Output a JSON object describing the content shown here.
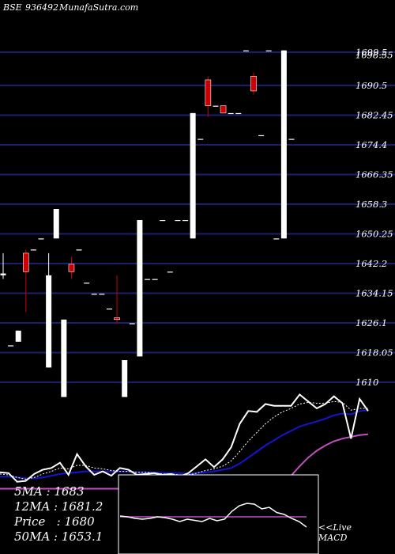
{
  "header": {
    "exchange": "BSE",
    "code": "936492",
    "site": "MunafaSutra.com"
  },
  "stats": [
    {
      "label": "5MA",
      "value": "1683"
    },
    {
      "label": "12MA",
      "value": "1681.2"
    },
    {
      "label": "Price",
      "value": "1680"
    },
    {
      "label": "50MA",
      "value": "1653.1"
    }
  ],
  "macd_note": {
    "line1": "<<Live",
    "line2": "MACD"
  },
  "colors": {
    "background": "#000000",
    "gridline": "#1e1e6e",
    "up": "#ffffff",
    "down": "#cc0000",
    "fast_ma": "#ffffff",
    "slow_ma": "#1414d2",
    "long_ma": "#c050c0"
  },
  "chart_data": {
    "type": "candlestick",
    "ylim": [
      1606,
      1701
    ],
    "y_ticks": [
      {
        "value": 1699.5,
        "label": "1699.5"
      },
      {
        "value": 1698.55,
        "label": "1698.55"
      },
      {
        "value": 1690.5,
        "label": "1690.5"
      },
      {
        "value": 1682.45,
        "label": "1682.45"
      },
      {
        "value": 1674.4,
        "label": "1674.4"
      },
      {
        "value": 1666.35,
        "label": "1666.35"
      },
      {
        "value": 1658.3,
        "label": "1658.3"
      },
      {
        "value": 1650.25,
        "label": "1650.25"
      },
      {
        "value": 1642.2,
        "label": "1642.2"
      },
      {
        "value": 1634.15,
        "label": "1634.15"
      },
      {
        "value": 1626.1,
        "label": "1626.1"
      },
      {
        "value": 1618.05,
        "label": "1618.05"
      },
      {
        "value": 1610,
        "label": "1610"
      }
    ],
    "candles": [
      {
        "o": 1639,
        "h": 1645,
        "l": 1638,
        "c": 1639.5
      },
      {
        "o": 1620,
        "h": 1620,
        "l": 1620,
        "c": 1620
      },
      {
        "o": 1621,
        "h": 1624,
        "l": 1621,
        "c": 1624
      },
      {
        "o": 1645,
        "h": 1646,
        "l": 1629,
        "c": 1640
      },
      {
        "o": 1646,
        "h": 1646,
        "l": 1646,
        "c": 1646
      },
      {
        "o": 1649,
        "h": 1649,
        "l": 1649,
        "c": 1649
      },
      {
        "o": 1614,
        "h": 1645,
        "l": 1614,
        "c": 1639
      },
      {
        "o": 1649,
        "h": 1657,
        "l": 1649,
        "c": 1657
      },
      {
        "o": 1606,
        "h": 1627,
        "l": 1606,
        "c": 1627
      },
      {
        "o": 1642,
        "h": 1644,
        "l": 1638,
        "c": 1640
      },
      {
        "o": 1646,
        "h": 1646,
        "l": 1646,
        "c": 1646
      },
      {
        "o": 1637,
        "h": 1637,
        "l": 1637,
        "c": 1637
      },
      {
        "o": 1634,
        "h": 1634,
        "l": 1634,
        "c": 1634
      },
      {
        "o": 1634,
        "h": 1634,
        "l": 1634,
        "c": 1634
      },
      {
        "o": 1630,
        "h": 1630,
        "l": 1630,
        "c": 1630
      },
      {
        "o": 1627.5,
        "h": 1639,
        "l": 1626,
        "c": 1627
      },
      {
        "o": 1606,
        "h": 1616,
        "l": 1606,
        "c": 1616
      },
      {
        "o": 1626,
        "h": 1626,
        "l": 1626,
        "c": 1626
      },
      {
        "o": 1617,
        "h": 1654,
        "l": 1617,
        "c": 1654
      },
      {
        "o": 1638,
        "h": 1638,
        "l": 1638,
        "c": 1638
      },
      {
        "o": 1638,
        "h": 1638,
        "l": 1638,
        "c": 1638
      },
      {
        "o": 1654,
        "h": 1654,
        "l": 1654,
        "c": 1654
      },
      {
        "o": 1640,
        "h": 1640,
        "l": 1640,
        "c": 1640
      },
      {
        "o": 1654,
        "h": 1654,
        "l": 1654,
        "c": 1654
      },
      {
        "o": 1654,
        "h": 1654,
        "l": 1654,
        "c": 1654
      },
      {
        "o": 1649,
        "h": 1683,
        "l": 1649,
        "c": 1683
      },
      {
        "o": 1676,
        "h": 1676,
        "l": 1676,
        "c": 1676
      },
      {
        "o": 1692,
        "h": 1693,
        "l": 1682,
        "c": 1685
      },
      {
        "o": 1685,
        "h": 1685,
        "l": 1685,
        "c": 1685
      },
      {
        "o": 1685,
        "h": 1685,
        "l": 1683,
        "c": 1683
      },
      {
        "o": 1683,
        "h": 1683,
        "l": 1683,
        "c": 1683
      },
      {
        "o": 1683,
        "h": 1683,
        "l": 1683,
        "c": 1683
      },
      {
        "o": 1700,
        "h": 1700,
        "l": 1700,
        "c": 1700
      },
      {
        "o": 1693,
        "h": 1694,
        "l": 1688,
        "c": 1689
      },
      {
        "o": 1677,
        "h": 1677,
        "l": 1677,
        "c": 1677
      },
      {
        "o": 1700,
        "h": 1700,
        "l": 1700,
        "c": 1700
      },
      {
        "o": 1649,
        "h": 1649,
        "l": 1649,
        "c": 1649
      },
      {
        "o": 1649,
        "h": 1700,
        "l": 1649,
        "c": 1700
      },
      {
        "o": 1676,
        "h": 1676,
        "l": 1676,
        "c": 1676
      }
    ],
    "ma_panel": {
      "ylim": [
        1595,
        1705
      ],
      "price": [
        1609,
        1608,
        1598,
        1599,
        1607,
        1612,
        1614,
        1620,
        1606,
        1630,
        1616,
        1606,
        1610,
        1605,
        1614,
        1612,
        1606,
        1607,
        1608,
        1606,
        1607,
        1604,
        1608,
        1616,
        1624,
        1615,
        1624,
        1638,
        1665,
        1680,
        1679,
        1688,
        1686,
        1686,
        1686,
        1699,
        1691,
        1683,
        1688,
        1697,
        1689,
        1648,
        1694,
        1680
      ],
      "fast_ma": [
        1607,
        1606,
        1603,
        1601,
        1603,
        1607,
        1610,
        1614,
        1613,
        1617,
        1617,
        1614,
        1613,
        1611,
        1610,
        1610,
        1609,
        1609,
        1608,
        1607,
        1607,
        1606,
        1606,
        1608,
        1611,
        1613,
        1616,
        1622,
        1633,
        1645,
        1655,
        1665,
        1673,
        1679,
        1683,
        1688,
        1690,
        1689,
        1689,
        1691,
        1690,
        1681,
        1683,
        1683
      ],
      "slow_ma": [
        1604,
        1604,
        1603,
        1602,
        1602,
        1603,
        1605,
        1607,
        1608,
        1609,
        1610,
        1610,
        1610,
        1610,
        1610,
        1610,
        1609,
        1609,
        1609,
        1608,
        1608,
        1608,
        1607,
        1608,
        1609,
        1610,
        1612,
        1614,
        1619,
        1626,
        1633,
        1640,
        1646,
        1652,
        1657,
        1662,
        1665,
        1668,
        1671,
        1675,
        1677,
        1676,
        1680,
        1681
      ],
      "long_ma": [
        1590,
        1590,
        1590,
        1590,
        1590,
        1590,
        1590,
        1590,
        1590,
        1590,
        1590,
        1590,
        1590,
        1590,
        1590,
        1590,
        1590,
        1590,
        1590,
        1590,
        1590,
        1590,
        1590,
        1590,
        1590,
        1590,
        1590,
        1590,
        1590,
        1590,
        1590,
        1590,
        1590,
        1590,
        1605,
        1616,
        1626,
        1634,
        1640,
        1645,
        1648,
        1650,
        1652,
        1653
      ]
    },
    "macd_panel": {
      "ylim": [
        -1,
        1
      ],
      "values": [
        -0.04,
        -0.06,
        -0.1,
        -0.12,
        -0.1,
        -0.06,
        -0.08,
        -0.12,
        -0.18,
        -0.12,
        -0.15,
        -0.18,
        -0.1,
        -0.16,
        -0.12,
        0.08,
        0.22,
        0.28,
        0.26,
        0.14,
        0.18,
        0.05,
        0.0,
        -0.1,
        -0.18,
        -0.32
      ],
      "signal": [
        -0.06,
        -0.06,
        -0.06,
        -0.06,
        -0.06,
        -0.06,
        -0.06,
        -0.06,
        -0.06,
        -0.06,
        -0.06,
        -0.06,
        -0.06,
        -0.06,
        -0.06,
        -0.06,
        -0.06,
        -0.06,
        -0.06,
        -0.06,
        -0.06,
        -0.06,
        -0.06,
        -0.06,
        -0.06,
        -0.06
      ]
    }
  }
}
